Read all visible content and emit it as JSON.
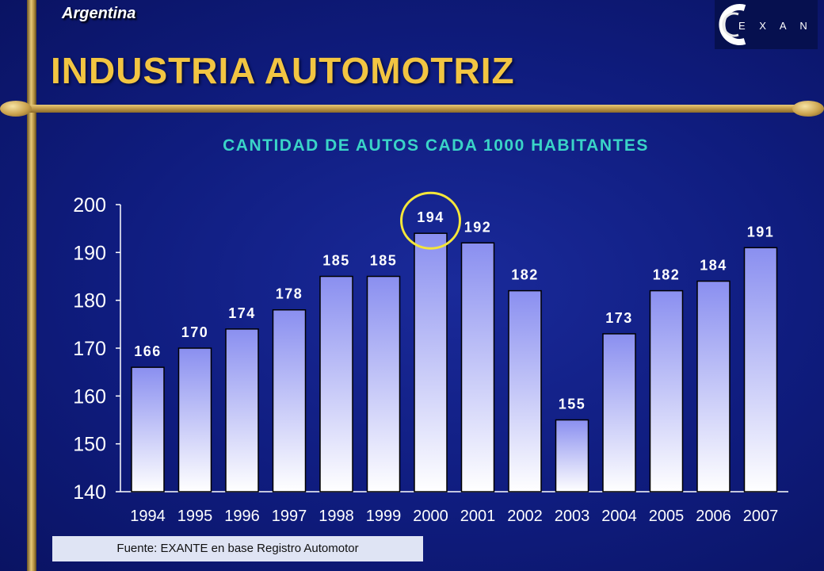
{
  "header": {
    "country": "Argentina",
    "title": "INDUSTRIA AUTOMOTRIZ",
    "logo_text": "EXANTE"
  },
  "chart_data": {
    "type": "bar",
    "title": "CANTIDAD DE AUTOS CADA 1000 HABITANTES",
    "xlabel": "",
    "ylabel": "",
    "categories": [
      "1994",
      "1995",
      "1996",
      "1997",
      "1998",
      "1999",
      "2000",
      "2001",
      "2002",
      "2003",
      "2004",
      "2005",
      "2006",
      "2007"
    ],
    "values": [
      166,
      170,
      174,
      178,
      185,
      185,
      194,
      192,
      182,
      155,
      173,
      182,
      184,
      191
    ],
    "ylim": [
      140,
      200
    ],
    "yticks": [
      140,
      150,
      160,
      170,
      180,
      190,
      200
    ],
    "data_labels": [
      "166",
      "170",
      "174",
      "178",
      "185",
      "185",
      "194",
      "192",
      "182",
      "155",
      "173",
      "182",
      "184",
      "191"
    ],
    "highlight_category": "2000",
    "grid": false,
    "colors": {
      "bar_top": "#8a8ff0",
      "bar_bottom": "#ffffff",
      "highlight_ring": "#f5e63a",
      "axis": "#ffffff"
    }
  },
  "footer": {
    "source": "Fuente: EXANTE en base Registro Automotor"
  }
}
